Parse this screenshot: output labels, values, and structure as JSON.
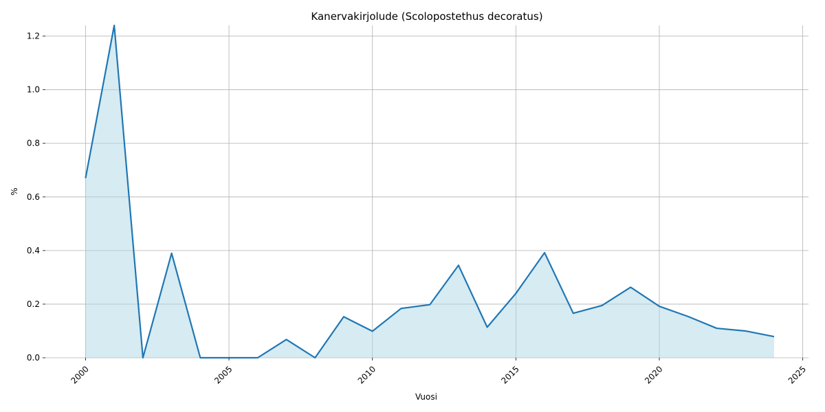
{
  "chart_data": {
    "type": "area",
    "title": "Kanervakirjolude (Scolopostethus decoratus)",
    "xlabel": "Vuosi",
    "ylabel": "%",
    "x": [
      2000,
      2001,
      2002,
      2003,
      2004,
      2005,
      2006,
      2007,
      2008,
      2009,
      2010,
      2011,
      2012,
      2013,
      2014,
      2015,
      2016,
      2017,
      2018,
      2019,
      2020,
      2021,
      2022,
      2023,
      2024
    ],
    "values": [
      0.67,
      1.24,
      0.0,
      0.39,
      0.0,
      0.0,
      0.0,
      0.068,
      0.0,
      0.153,
      0.099,
      0.184,
      0.198,
      0.345,
      0.114,
      0.24,
      0.392,
      0.166,
      0.195,
      0.263,
      0.192,
      0.154,
      0.11,
      0.1,
      0.079
    ],
    "xlim": [
      1998.6,
      2025.2
    ],
    "ylim": [
      0,
      1.24
    ],
    "xticks": [
      "2000",
      "2005",
      "2010",
      "2015",
      "2020",
      "2025"
    ],
    "yticks": [
      "0.0",
      "0.2",
      "0.4",
      "0.6",
      "0.8",
      "1.0",
      "1.2"
    ],
    "grid": true,
    "line_color": "#1f77b4",
    "fill_color": "#add8e6"
  }
}
